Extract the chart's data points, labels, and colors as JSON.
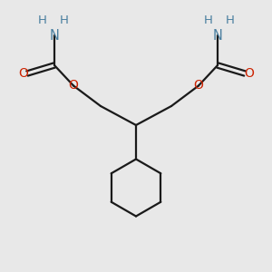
{
  "bg_color": "#e8e8e8",
  "bond_color": "#1a1a1a",
  "N_color": "#4a7fa0",
  "O_color": "#cc2200",
  "H_color": "#4a7fa0",
  "line_width": 1.6,
  "fig_size": [
    3.0,
    3.0
  ],
  "dpi": 100,
  "xlim": [
    0,
    10
  ],
  "ylim": [
    0,
    10
  ]
}
